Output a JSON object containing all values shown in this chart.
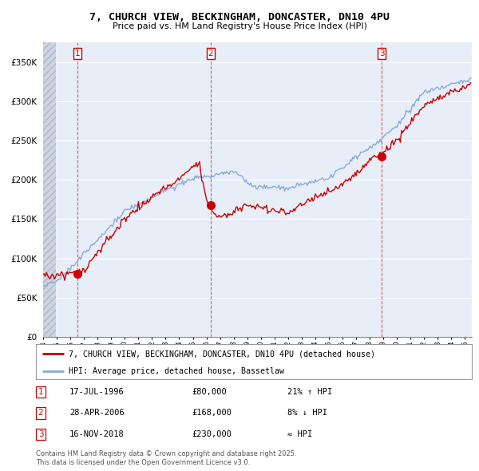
{
  "title_line1": "7, CHURCH VIEW, BECKINGHAM, DONCASTER, DN10 4PU",
  "title_line2": "Price paid vs. HM Land Registry's House Price Index (HPI)",
  "bg_color": "#e8eef8",
  "hatch_bg_color": "#d8dde8",
  "grid_color": "#ffffff",
  "sale_color": "#cc0000",
  "hpi_color": "#88aadd",
  "sale_label": "7, CHURCH VIEW, BECKINGHAM, DONCASTER, DN10 4PU (detached house)",
  "hpi_label": "HPI: Average price, detached house, Bassetlaw",
  "transactions": [
    {
      "num": 1,
      "date": "17-JUL-1996",
      "price": 80000,
      "hpi_rel": "21% ↑ HPI",
      "year": 1996.54
    },
    {
      "num": 2,
      "date": "28-APR-2006",
      "price": 168000,
      "hpi_rel": "8% ↓ HPI",
      "year": 2006.32
    },
    {
      "num": 3,
      "date": "16-NOV-2018",
      "price": 230000,
      "hpi_rel": "≈ HPI",
      "year": 2018.88
    }
  ],
  "footer_line1": "Contains HM Land Registry data © Crown copyright and database right 2025.",
  "footer_line2": "This data is licensed under the Open Government Licence v3.0.",
  "ylim": [
    0,
    375000
  ],
  "yticks": [
    0,
    50000,
    100000,
    150000,
    200000,
    250000,
    300000,
    350000
  ],
  "ytick_labels": [
    "£0",
    "£50K",
    "£100K",
    "£150K",
    "£200K",
    "£250K",
    "£300K",
    "£350K"
  ],
  "xstart": 1994,
  "xend": 2025.5
}
